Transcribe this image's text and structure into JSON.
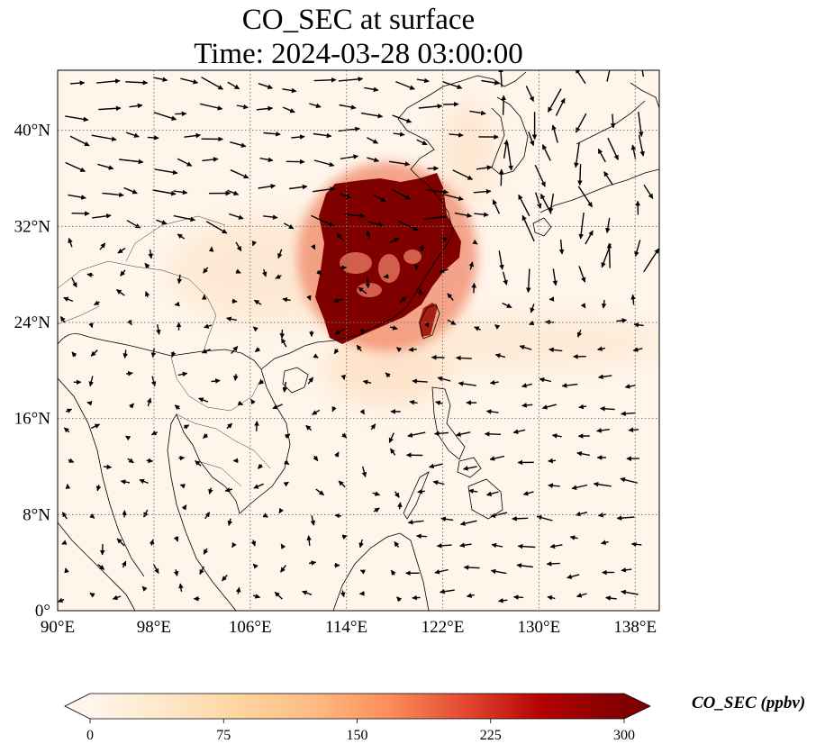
{
  "title": {
    "line1": "CO_SEC at surface",
    "line2": "Time: 2024-03-28 03:00:00"
  },
  "map": {
    "lon_range": [
      90,
      140
    ],
    "lat_range": [
      0,
      45
    ],
    "lon_ticks": [
      "90°E",
      "98°E",
      "106°E",
      "114°E",
      "122°E",
      "130°E",
      "138°E"
    ],
    "lat_ticks": [
      "0°",
      "8°N",
      "16°N",
      "24°N",
      "32°N",
      "40°N"
    ],
    "gridlines": true,
    "background_color": "#fff5eb",
    "field": "CO_SEC",
    "level": "surface"
  },
  "colorbar": {
    "label": "CO_SEC (ppbv)",
    "min": 0,
    "max": 300,
    "ticks": [
      "0",
      "75",
      "150",
      "225",
      "300"
    ],
    "colormap": "OrRd-style",
    "extend": "both",
    "colors": [
      "#fff5eb",
      "#fdd49e",
      "#fdbb84",
      "#fc8d59",
      "#ef6548",
      "#d7301f",
      "#b30000",
      "#7f0000"
    ]
  }
}
